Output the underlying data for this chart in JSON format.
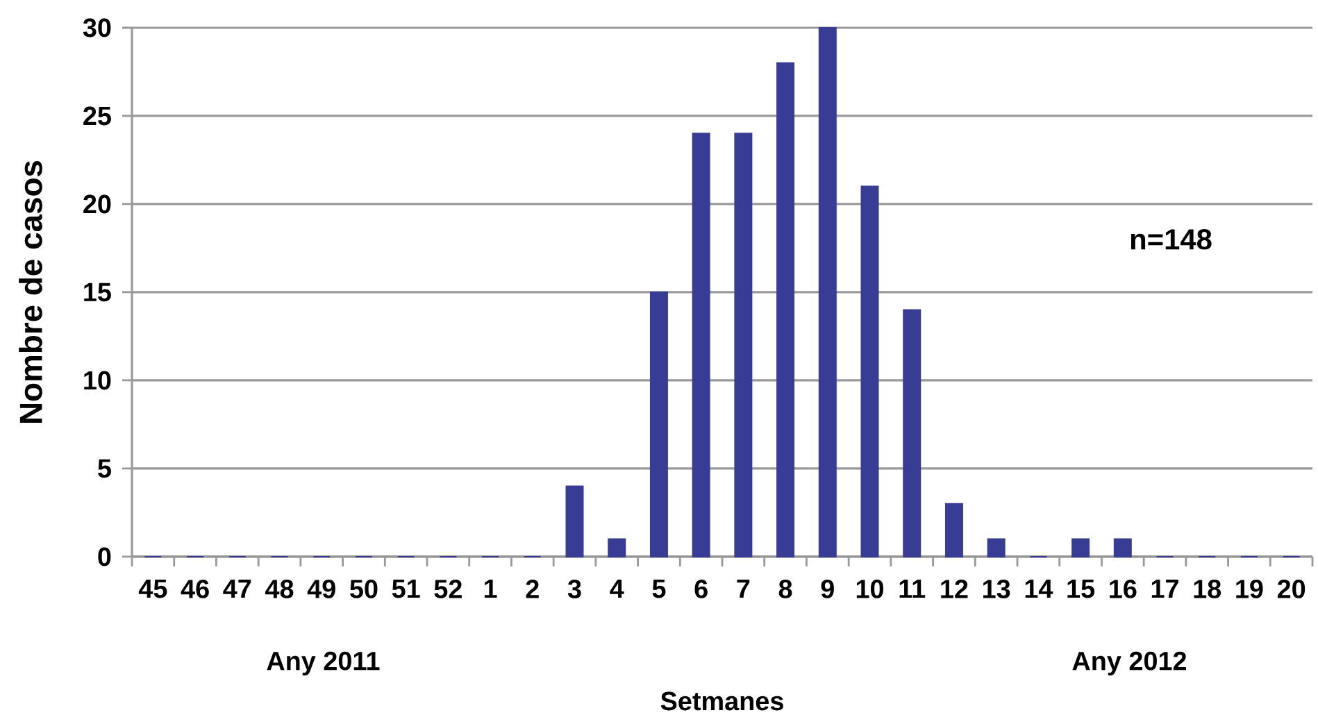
{
  "chart_data": {
    "type": "bar",
    "xlabel": "Setmanes",
    "ylabel": "Nombre de casos",
    "annotations": [
      "n=148",
      "Any 2011",
      "Any 2012"
    ],
    "categories": [
      "45",
      "46",
      "47",
      "48",
      "49",
      "50",
      "51",
      "52",
      "1",
      "2",
      "3",
      "4",
      "5",
      "6",
      "7",
      "8",
      "9",
      "10",
      "11",
      "12",
      "13",
      "14",
      "15",
      "16",
      "17",
      "18",
      "19",
      "20"
    ],
    "values": [
      0,
      0,
      0,
      0,
      0,
      0,
      0,
      0,
      0,
      0,
      4,
      1,
      15,
      24,
      24,
      28,
      30,
      21,
      14,
      3,
      1,
      0,
      1,
      1,
      0,
      0,
      0,
      0
    ],
    "color": "#383c94",
    "ylim": [
      0,
      30
    ],
    "yticks": [
      0,
      5,
      10,
      15,
      20,
      25,
      30
    ],
    "grid": "y"
  }
}
